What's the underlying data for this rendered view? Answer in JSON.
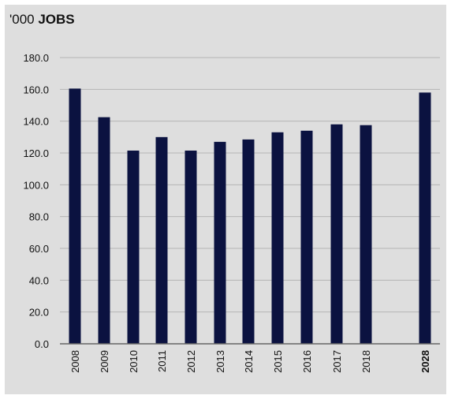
{
  "chart_data": {
    "type": "bar",
    "title_unit": "'000",
    "title_main": "JOBS",
    "categories": [
      "2008",
      "2009",
      "2010",
      "2011",
      "2012",
      "2013",
      "2014",
      "2015",
      "2016",
      "2017",
      "2018",
      "2028"
    ],
    "values": [
      160.5,
      142.5,
      121.5,
      130.0,
      121.5,
      127.0,
      128.5,
      133.0,
      134.0,
      138.0,
      137.5,
      158.0
    ],
    "bold_categories": [
      "2028"
    ],
    "yticks": [
      "0.0",
      "20.0",
      "40.0",
      "60.0",
      "80.0",
      "100.0",
      "120.0",
      "140.0",
      "160.0",
      "180.0"
    ],
    "ylim": [
      0,
      180
    ],
    "grid": true,
    "colors": {
      "bar": "#0b1240",
      "grid": "#b4b4b4",
      "axis": "#666666",
      "background": "#dedede"
    }
  }
}
